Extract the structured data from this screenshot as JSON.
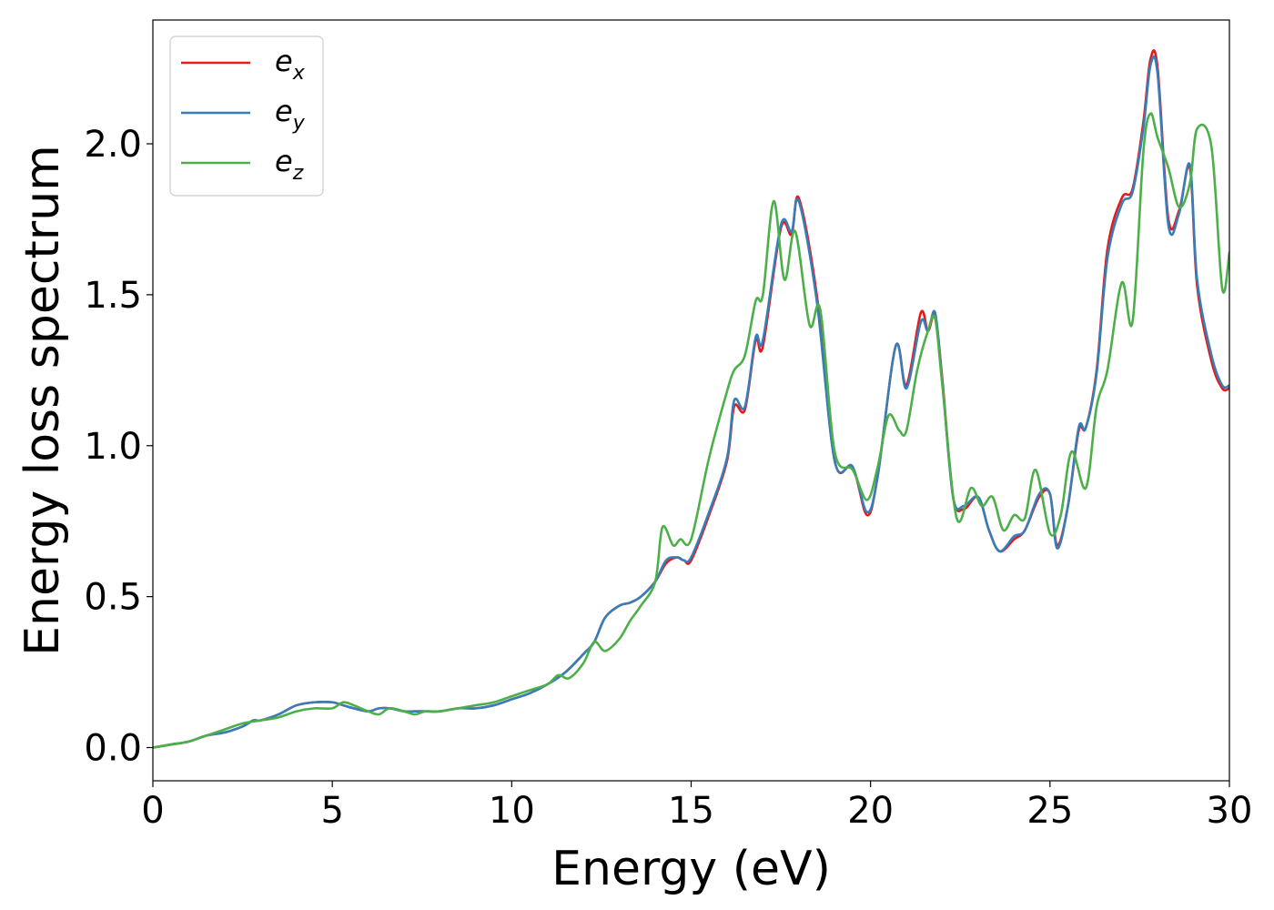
{
  "chart_data": {
    "type": "line",
    "title": "",
    "xlabel": "Energy (eV)",
    "ylabel": "Energy loss spectrum",
    "xlim": [
      0,
      30
    ],
    "ylim": [
      -0.11,
      2.41
    ],
    "xticks": [
      0,
      5,
      10,
      15,
      20,
      25,
      30
    ],
    "yticks": [
      0.0,
      0.5,
      1.0,
      1.5,
      2.0
    ],
    "xtick_labels": [
      "0",
      "5",
      "10",
      "15",
      "20",
      "25",
      "30"
    ],
    "ytick_labels": [
      "0.0",
      "0.5",
      "1.0",
      "1.5",
      "2.0"
    ],
    "grid": false,
    "legend_position": "top-left",
    "series": [
      {
        "name": "e_x",
        "label_base": "e",
        "label_sub": "x",
        "color": "#e41a1c",
        "x": [
          0,
          0.5,
          1,
          1.5,
          2,
          2.5,
          2.8,
          3,
          3.5,
          4,
          4.5,
          5,
          5.3,
          5.6,
          6,
          6.3,
          6.6,
          7,
          7.3,
          7.6,
          8,
          8.5,
          9,
          9.5,
          10,
          10.5,
          11,
          11.5,
          12,
          12.3,
          12.6,
          13,
          13.3,
          13.6,
          14,
          14.3,
          14.6,
          14.8,
          15,
          15.5,
          16,
          16.2,
          16.5,
          16.8,
          17,
          17.5,
          17.8,
          18,
          18.5,
          19,
          19.5,
          19.9,
          20.2,
          20.7,
          21,
          21.4,
          21.6,
          21.8,
          22,
          22.3,
          22.6,
          23,
          23.3,
          23.6,
          24,
          24.3,
          24.7,
          25,
          25.2,
          25.5,
          25.8,
          26,
          26.3,
          26.6,
          27,
          27.3,
          27.6,
          27.8,
          28,
          28.3,
          28.6,
          28.9,
          29.1,
          29.5,
          29.8,
          30
        ],
        "y": [
          0,
          0.01,
          0.02,
          0.04,
          0.05,
          0.07,
          0.09,
          0.09,
          0.11,
          0.14,
          0.15,
          0.15,
          0.14,
          0.13,
          0.12,
          0.13,
          0.13,
          0.12,
          0.12,
          0.12,
          0.12,
          0.13,
          0.13,
          0.14,
          0.16,
          0.18,
          0.21,
          0.25,
          0.31,
          0.35,
          0.43,
          0.47,
          0.48,
          0.5,
          0.55,
          0.61,
          0.63,
          0.62,
          0.62,
          0.77,
          0.95,
          1.13,
          1.12,
          1.35,
          1.33,
          1.72,
          1.7,
          1.82,
          1.5,
          0.95,
          0.93,
          0.77,
          0.9,
          1.33,
          1.2,
          1.44,
          1.38,
          1.43,
          1.22,
          0.83,
          0.79,
          0.83,
          0.72,
          0.65,
          0.69,
          0.72,
          0.83,
          0.84,
          0.67,
          0.8,
          1.05,
          1.06,
          1.25,
          1.65,
          1.82,
          1.85,
          2.07,
          2.28,
          2.25,
          1.75,
          1.78,
          1.92,
          1.53,
          1.28,
          1.19,
          1.19
        ]
      },
      {
        "name": "e_y",
        "label_base": "e",
        "label_sub": "y",
        "color": "#377eb8",
        "x": [
          0,
          0.5,
          1,
          1.5,
          2,
          2.5,
          2.8,
          3,
          3.5,
          4,
          4.5,
          5,
          5.3,
          5.6,
          6,
          6.3,
          6.6,
          7,
          7.3,
          7.6,
          8,
          8.5,
          9,
          9.5,
          10,
          10.5,
          11,
          11.5,
          12,
          12.3,
          12.6,
          13,
          13.3,
          13.6,
          14,
          14.3,
          14.6,
          14.8,
          15,
          15.5,
          16,
          16.2,
          16.5,
          16.8,
          17,
          17.5,
          17.8,
          18,
          18.5,
          19,
          19.5,
          19.9,
          20.2,
          20.7,
          21,
          21.4,
          21.6,
          21.8,
          22,
          22.3,
          22.6,
          23,
          23.3,
          23.6,
          24,
          24.3,
          24.7,
          25,
          25.2,
          25.5,
          25.8,
          26,
          26.3,
          26.6,
          27,
          27.3,
          27.6,
          27.8,
          28,
          28.3,
          28.6,
          28.9,
          29.1,
          29.5,
          29.8,
          30
        ],
        "y": [
          0,
          0.01,
          0.02,
          0.04,
          0.05,
          0.07,
          0.09,
          0.09,
          0.11,
          0.14,
          0.15,
          0.15,
          0.14,
          0.13,
          0.12,
          0.13,
          0.13,
          0.12,
          0.12,
          0.12,
          0.12,
          0.13,
          0.13,
          0.14,
          0.16,
          0.18,
          0.21,
          0.25,
          0.31,
          0.35,
          0.43,
          0.47,
          0.48,
          0.5,
          0.55,
          0.62,
          0.63,
          0.62,
          0.63,
          0.78,
          0.96,
          1.15,
          1.13,
          1.36,
          1.35,
          1.73,
          1.71,
          1.81,
          1.48,
          0.95,
          0.93,
          0.78,
          0.9,
          1.33,
          1.19,
          1.41,
          1.38,
          1.44,
          1.21,
          0.83,
          0.8,
          0.83,
          0.72,
          0.65,
          0.7,
          0.72,
          0.84,
          0.84,
          0.66,
          0.8,
          1.06,
          1.06,
          1.24,
          1.62,
          1.8,
          1.84,
          2.05,
          2.26,
          2.23,
          1.73,
          1.77,
          1.93,
          1.55,
          1.3,
          1.2,
          1.2
        ]
      },
      {
        "name": "e_z",
        "label_base": "e",
        "label_sub": "z",
        "color": "#4daf4a",
        "x": [
          0,
          0.5,
          1,
          1.5,
          2,
          2.5,
          3,
          3.5,
          4,
          4.5,
          5,
          5.3,
          5.6,
          6,
          6.3,
          6.6,
          7,
          7.3,
          7.6,
          8,
          8.5,
          9,
          9.5,
          10,
          10.5,
          11,
          11.3,
          11.6,
          12,
          12.3,
          12.6,
          13,
          13.3,
          13.6,
          14,
          14.2,
          14.5,
          14.7,
          15,
          15.5,
          16,
          16.2,
          16.5,
          16.8,
          17,
          17.3,
          17.6,
          17.9,
          18.3,
          18.6,
          19,
          19.5,
          19.9,
          20.2,
          20.5,
          20.8,
          21,
          21.3,
          21.6,
          21.8,
          22,
          22.4,
          22.8,
          23.1,
          23.4,
          23.7,
          24,
          24.3,
          24.6,
          25,
          25.3,
          25.6,
          26,
          26.3,
          26.6,
          27,
          27.3,
          27.6,
          27.8,
          28,
          28.3,
          28.6,
          28.9,
          29.1,
          29.5,
          29.8,
          30
        ],
        "y": [
          0,
          0.01,
          0.02,
          0.04,
          0.06,
          0.08,
          0.09,
          0.1,
          0.12,
          0.13,
          0.13,
          0.15,
          0.14,
          0.12,
          0.11,
          0.13,
          0.12,
          0.11,
          0.12,
          0.12,
          0.13,
          0.14,
          0.15,
          0.17,
          0.19,
          0.21,
          0.24,
          0.23,
          0.28,
          0.35,
          0.32,
          0.36,
          0.42,
          0.47,
          0.55,
          0.73,
          0.67,
          0.69,
          0.69,
          0.96,
          1.18,
          1.25,
          1.3,
          1.48,
          1.5,
          1.81,
          1.55,
          1.71,
          1.4,
          1.45,
          0.98,
          0.92,
          0.82,
          0.93,
          1.1,
          1.05,
          1.05,
          1.25,
          1.38,
          1.42,
          1.2,
          0.76,
          0.86,
          0.8,
          0.83,
          0.72,
          0.77,
          0.76,
          0.92,
          0.71,
          0.77,
          0.98,
          0.86,
          1.13,
          1.25,
          1.54,
          1.41,
          1.97,
          2.1,
          2.02,
          1.92,
          1.79,
          1.87,
          2.05,
          1.99,
          1.52,
          1.64
        ]
      }
    ]
  }
}
